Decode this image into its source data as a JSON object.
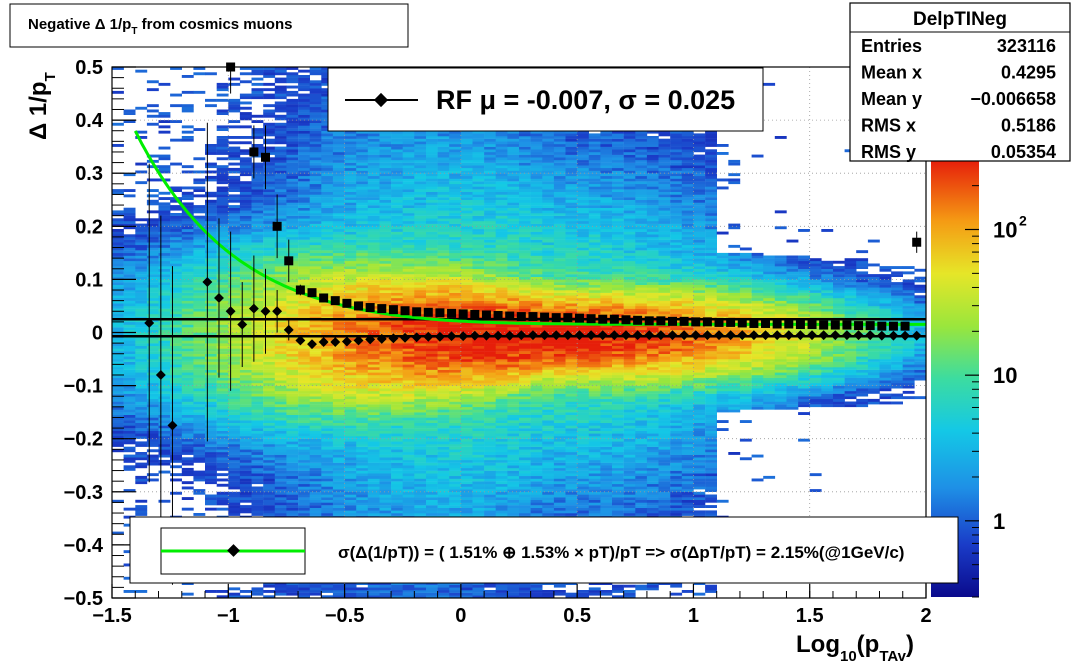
{
  "chart_data": {
    "type": "heatmap",
    "title": "Negative Δ 1/p",
    "title_sub": "T",
    "title_rest": " from cosmics muons",
    "xlabel": "Log",
    "xlabel_sub1": "10",
    "xlabel_mid": "(p",
    "xlabel_sub2": "TAv",
    "xlabel_end": ")",
    "ylabel": "Δ 1/p",
    "ylabel_sub": "T",
    "xlim": [
      -1.5,
      2
    ],
    "ylim": [
      -0.5,
      0.5
    ],
    "x_ticks": [
      "−1.5",
      "−1",
      "−0.5",
      "0",
      "0.5",
      "1",
      "1.5",
      "2"
    ],
    "x_tick_values": [
      -1.5,
      -1,
      -0.5,
      0,
      0.5,
      1,
      1.5,
      2
    ],
    "y_ticks": [
      "−0.5",
      "−0.4",
      "−0.3",
      "−0.2",
      "−0.1",
      "0",
      "0.1",
      "0.2",
      "0.3",
      "0.4",
      "0.5"
    ],
    "y_tick_values": [
      -0.5,
      -0.4,
      -0.3,
      -0.2,
      -0.1,
      0,
      0.1,
      0.2,
      0.3,
      0.4,
      0.5
    ],
    "grid": true,
    "color_scale": "log",
    "zlim": [
      0.3,
      300
    ],
    "z_ticks": [
      {
        "value": 1,
        "label": "1",
        "exp": ""
      },
      {
        "value": 10,
        "label": "10",
        "exp": ""
      },
      {
        "value": 100,
        "label": "10",
        "exp": "2"
      }
    ],
    "stats": {
      "name": "DelpTINeg",
      "rows": [
        {
          "label": "Entries",
          "value": "323116"
        },
        {
          "label": "Mean x",
          "value": "0.4295"
        },
        {
          "label": "Mean y",
          "value": "−0.006658"
        },
        {
          "label": "RMS x",
          "value": "0.5186"
        },
        {
          "label": "RMS y",
          "value": "0.05354"
        }
      ]
    },
    "legend_top": {
      "text": "RF μ = -0.007, σ =   0.025"
    },
    "legend_bottom": {
      "text": "σ(Δ(1/pT)) = ( 1.51% ⊕  1.53% × pT)/pT => σ(ΔpT/pT) =  2.15%(@1GeV/c)"
    },
    "horizontal_lines": [
      0.025,
      -0.007
    ],
    "fit_curve": {
      "name": "resolution fit",
      "color": "#00ee00",
      "params": [
        0.0151,
        0.0153
      ]
    },
    "series": [
      {
        "name": "mean",
        "marker": "diamond",
        "x": [
          -1.34,
          -1.29,
          -1.24,
          -1.09,
          -1.04,
          -0.99,
          -0.94,
          -0.89,
          -0.84,
          -0.79,
          -0.74,
          -0.69,
          -0.64,
          -0.59,
          -0.54,
          -0.49,
          -0.44,
          -0.39,
          -0.34,
          -0.29,
          -0.24,
          -0.19,
          -0.14,
          -0.09,
          -0.04,
          0.01,
          0.06,
          0.11,
          0.16,
          0.21,
          0.26,
          0.31,
          0.36,
          0.41,
          0.46,
          0.51,
          0.56,
          0.61,
          0.66,
          0.71,
          0.76,
          0.81,
          0.86,
          0.91,
          0.96,
          1.01,
          1.06,
          1.11,
          1.16,
          1.21,
          1.26,
          1.31,
          1.36,
          1.41,
          1.46,
          1.51,
          1.56,
          1.61,
          1.66,
          1.71,
          1.76,
          1.81,
          1.86,
          1.91,
          1.96
        ],
        "y": [
          0.018,
          -0.08,
          -0.175,
          0.095,
          0.065,
          0.04,
          0.015,
          0.045,
          0.04,
          0.04,
          0.005,
          -0.015,
          -0.022,
          -0.018,
          -0.018,
          -0.017,
          -0.015,
          -0.013,
          -0.012,
          -0.011,
          -0.01,
          -0.009,
          -0.008,
          -0.008,
          -0.007,
          -0.007,
          -0.006,
          -0.006,
          -0.006,
          -0.006,
          -0.005,
          -0.005,
          -0.005,
          -0.005,
          -0.005,
          -0.005,
          -0.005,
          -0.005,
          -0.005,
          -0.005,
          -0.005,
          -0.005,
          -0.005,
          -0.005,
          -0.005,
          -0.005,
          -0.005,
          -0.005,
          -0.005,
          -0.005,
          -0.005,
          -0.005,
          -0.005,
          -0.005,
          -0.005,
          -0.005,
          -0.005,
          -0.005,
          -0.005,
          -0.005,
          -0.005,
          -0.006,
          -0.006,
          -0.006,
          -0.006
        ],
        "err": [
          0.3,
          0.3,
          0.3,
          0.3,
          0.15,
          0.15,
          0.08,
          0.1,
          0.08,
          0.04,
          0.02,
          0.005,
          0.005,
          0.004,
          0.003,
          0.003,
          0.003,
          0.002,
          0.002,
          0.002,
          0.002,
          0.002,
          0.002,
          0.002,
          0.002,
          0.002,
          0.002,
          0.002,
          0.002,
          0.002,
          0.002,
          0.002,
          0.002,
          0.002,
          0.002,
          0.002,
          0.002,
          0.002,
          0.002,
          0.002,
          0.002,
          0.002,
          0.002,
          0.002,
          0.002,
          0.002,
          0.002,
          0.002,
          0.002,
          0.002,
          0.002,
          0.002,
          0.002,
          0.002,
          0.002,
          0.002,
          0.002,
          0.002,
          0.002,
          0.002,
          0.002,
          0.003,
          0.003,
          0.003,
          0.003
        ]
      },
      {
        "name": "sigma",
        "marker": "square",
        "x": [
          -0.99,
          -0.89,
          -0.84,
          -0.79,
          -0.74,
          -0.69,
          -0.64,
          -0.59,
          -0.54,
          -0.49,
          -0.44,
          -0.39,
          -0.34,
          -0.29,
          -0.24,
          -0.19,
          -0.14,
          -0.09,
          -0.04,
          0.01,
          0.06,
          0.11,
          0.16,
          0.21,
          0.26,
          0.31,
          0.36,
          0.41,
          0.46,
          0.51,
          0.56,
          0.61,
          0.66,
          0.71,
          0.76,
          0.81,
          0.86,
          0.91,
          0.96,
          1.01,
          1.06,
          1.11,
          1.16,
          1.21,
          1.26,
          1.31,
          1.36,
          1.41,
          1.46,
          1.51,
          1.56,
          1.61,
          1.66,
          1.71,
          1.76,
          1.81,
          1.86,
          1.91,
          1.96
        ],
        "y": [
          0.5,
          0.34,
          0.33,
          0.2,
          0.135,
          0.08,
          0.075,
          0.065,
          0.06,
          0.055,
          0.05,
          0.047,
          0.045,
          0.043,
          0.041,
          0.039,
          0.038,
          0.037,
          0.036,
          0.035,
          0.034,
          0.033,
          0.032,
          0.031,
          0.03,
          0.03,
          0.029,
          0.028,
          0.028,
          0.027,
          0.026,
          0.025,
          0.025,
          0.024,
          0.023,
          0.022,
          0.022,
          0.021,
          0.021,
          0.02,
          0.02,
          0.019,
          0.019,
          0.018,
          0.017,
          0.017,
          0.016,
          0.016,
          0.015,
          0.015,
          0.014,
          0.014,
          0.014,
          0.013,
          0.013,
          0.012,
          0.012,
          0.012,
          0.17
        ],
        "err": [
          0.05,
          0.05,
          0.06,
          0.06,
          0.04,
          0.01,
          0.005,
          0.004,
          0.003,
          0.003,
          0.003,
          0.002,
          0.002,
          0.002,
          0.002,
          0.002,
          0.002,
          0.002,
          0.002,
          0.002,
          0.002,
          0.002,
          0.002,
          0.002,
          0.002,
          0.002,
          0.002,
          0.002,
          0.002,
          0.002,
          0.002,
          0.002,
          0.002,
          0.002,
          0.002,
          0.002,
          0.002,
          0.002,
          0.002,
          0.002,
          0.002,
          0.002,
          0.002,
          0.002,
          0.002,
          0.002,
          0.002,
          0.002,
          0.002,
          0.002,
          0.002,
          0.002,
          0.002,
          0.002,
          0.002,
          0.002,
          0.002,
          0.002,
          0.02
        ]
      }
    ]
  }
}
